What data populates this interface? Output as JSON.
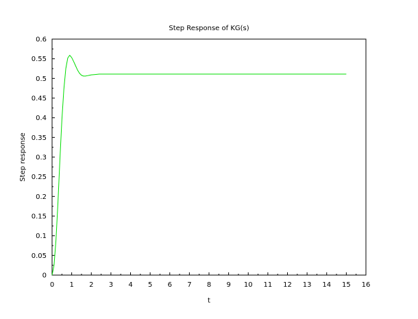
{
  "chart_data": {
    "type": "line",
    "title": "Step Response of KG(s)",
    "xlabel": "t",
    "ylabel": "Step response",
    "xlim": [
      0,
      16
    ],
    "ylim": [
      0,
      0.6
    ],
    "xticks": [
      0,
      1,
      2,
      3,
      4,
      5,
      6,
      7,
      8,
      9,
      10,
      11,
      12,
      13,
      14,
      15,
      16
    ],
    "xtick_labels": [
      "0",
      "1",
      "2",
      "3",
      "4",
      "5",
      "6",
      "7",
      "8",
      "9",
      "10",
      "11",
      "12",
      "13",
      "14",
      "15",
      "16"
    ],
    "yticks": [
      0,
      0.05,
      0.1,
      0.15,
      0.2,
      0.25,
      0.3,
      0.35,
      0.4,
      0.45,
      0.5,
      0.55,
      0.6
    ],
    "ytick_labels": [
      "0",
      "0.05",
      "0.1",
      "0.15",
      "0.2",
      "0.25",
      "0.3",
      "0.35",
      "0.4",
      "0.45",
      "0.5",
      "0.55",
      "0.6"
    ],
    "grid": false,
    "series": [
      {
        "color": "#00dd00",
        "x": [
          0,
          0.1,
          0.2,
          0.3,
          0.4,
          0.5,
          0.6,
          0.7,
          0.8,
          0.9,
          1.0,
          1.1,
          1.2,
          1.3,
          1.4,
          1.5,
          1.6,
          1.7,
          1.8,
          1.9,
          2.0,
          2.2,
          2.4,
          2.6,
          2.8,
          3.0,
          4.0,
          5.0,
          6.0,
          8.0,
          10.0,
          12.0,
          14.0,
          15.0
        ],
        "y": [
          0,
          0.025,
          0.09,
          0.185,
          0.295,
          0.395,
          0.472,
          0.525,
          0.552,
          0.559,
          0.553,
          0.543,
          0.532,
          0.521,
          0.513,
          0.508,
          0.506,
          0.506,
          0.507,
          0.508,
          0.509,
          0.51,
          0.511,
          0.511,
          0.511,
          0.511,
          0.511,
          0.511,
          0.511,
          0.511,
          0.511,
          0.511,
          0.511,
          0.511
        ]
      }
    ]
  }
}
